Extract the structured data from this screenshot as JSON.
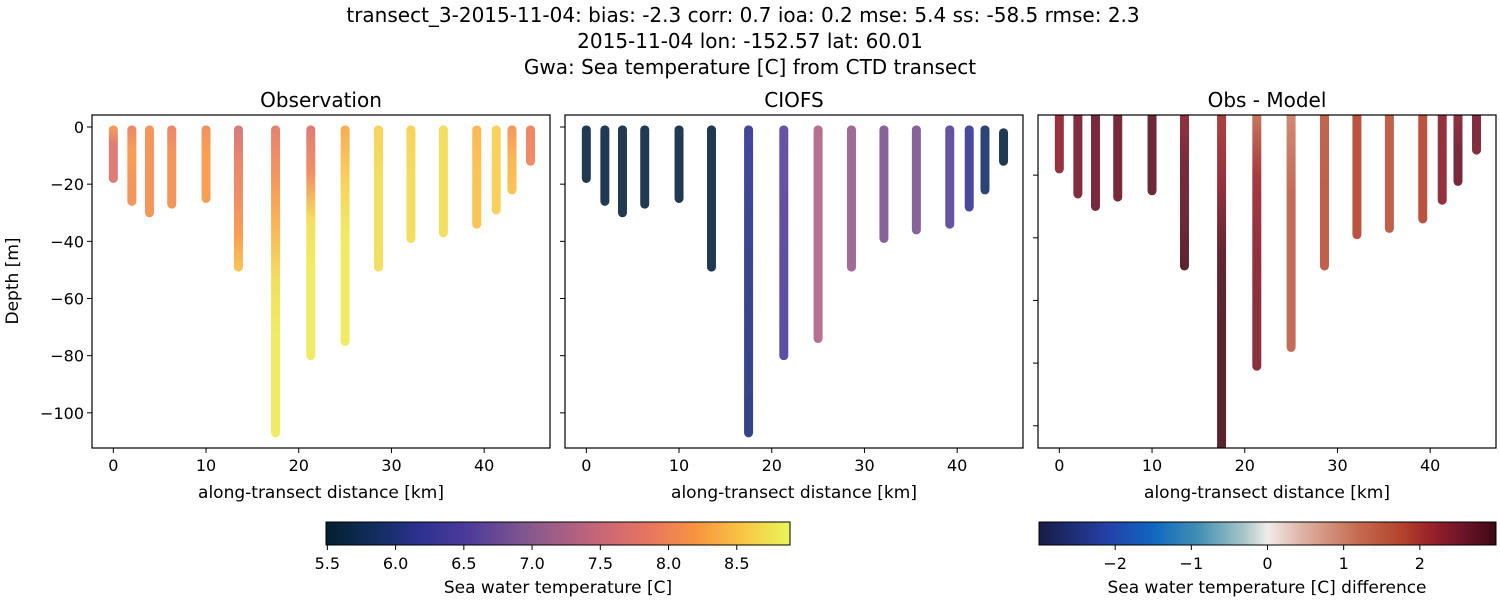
{
  "title": {
    "line1": "transect_3-2015-11-04: bias: -2.3  corr: 0.7  ioa: 0.2  mse: 5.4  ss: -58.5  rmse: 2.3",
    "line2": "2015-11-04 lon: -152.57 lat: 60.01",
    "line3": "Gwa: Sea temperature [C] from CTD transect"
  },
  "chart_data": [
    {
      "type": "scatter",
      "title": "Observation",
      "xlabel": "along-transect distance [km]",
      "ylabel": "Depth [m]",
      "xlim": [
        -2.3,
        47.1
      ],
      "ylim": [
        -112.3,
        4.2
      ],
      "xticks": [
        0,
        10,
        20,
        30,
        40
      ],
      "yticks": [
        0,
        -20,
        -40,
        -60,
        -80,
        -100
      ],
      "colormap": "thermal",
      "clim": [
        5.49,
        8.89
      ],
      "casts": [
        {
          "x": 0,
          "depth": 18,
          "temps": [
            8.2,
            7.7,
            7.7,
            7.7
          ]
        },
        {
          "x": 2,
          "depth": 26,
          "temps": [
            7.9,
            8.2,
            8.1,
            8.1
          ]
        },
        {
          "x": 3.9,
          "depth": 30,
          "temps": [
            8.1,
            8.1,
            8.1,
            8.1
          ]
        },
        {
          "x": 6.3,
          "depth": 27,
          "temps": [
            7.9,
            8.1,
            8.1,
            8.1
          ]
        },
        {
          "x": 10,
          "depth": 25,
          "temps": [
            8.0,
            8.2,
            8.2,
            8.2
          ]
        },
        {
          "x": 13.5,
          "depth": 49,
          "temps": [
            7.6,
            7.9,
            8.0,
            8.2,
            8.5
          ]
        },
        {
          "x": 17.5,
          "depth": 107,
          "temps": [
            7.8,
            8.1,
            8.4,
            8.7,
            8.8,
            8.8,
            8.8
          ]
        },
        {
          "x": 21.3,
          "depth": 80,
          "temps": [
            7.7,
            8.0,
            8.7,
            8.8,
            8.8,
            8.8
          ]
        },
        {
          "x": 25,
          "depth": 75,
          "temps": [
            8.3,
            8.6,
            8.8,
            8.8,
            8.8
          ]
        },
        {
          "x": 28.6,
          "depth": 49,
          "temps": [
            8.6,
            8.7,
            8.7,
            8.7
          ]
        },
        {
          "x": 32.1,
          "depth": 39,
          "temps": [
            8.6,
            8.7,
            8.7
          ]
        },
        {
          "x": 35.6,
          "depth": 37,
          "temps": [
            8.7,
            8.7,
            8.7
          ]
        },
        {
          "x": 39.2,
          "depth": 34,
          "temps": [
            8.4,
            8.5,
            8.5
          ]
        },
        {
          "x": 41.3,
          "depth": 29,
          "temps": [
            8.6,
            8.6,
            8.6
          ]
        },
        {
          "x": 43,
          "depth": 22,
          "temps": [
            8.1,
            8.4,
            8.5
          ]
        },
        {
          "x": 45,
          "depth": 12,
          "temps": [
            7.9,
            8.0
          ]
        }
      ]
    },
    {
      "type": "scatter",
      "title": "CIOFS",
      "xlabel": "along-transect distance [km]",
      "xlim": [
        -2.3,
        47.1
      ],
      "ylim": [
        -112.3,
        4.2
      ],
      "xticks": [
        0,
        10,
        20,
        30,
        40
      ],
      "yticks": [
        0,
        -20,
        -40,
        -60,
        -80,
        -100
      ],
      "colormap": "thermal",
      "clim": [
        5.49,
        8.89
      ],
      "casts": [
        {
          "x": 0,
          "depth": 18,
          "temps": [
            5.6
          ]
        },
        {
          "x": 2,
          "depth": 26,
          "temps": [
            5.6
          ]
        },
        {
          "x": 3.9,
          "depth": 30,
          "temps": [
            5.6
          ]
        },
        {
          "x": 6.3,
          "depth": 27,
          "temps": [
            5.6
          ]
        },
        {
          "x": 10,
          "depth": 25,
          "temps": [
            5.6
          ]
        },
        {
          "x": 13.5,
          "depth": 49,
          "temps": [
            5.6
          ]
        },
        {
          "x": 17.5,
          "depth": 107,
          "temps": [
            6.2,
            6.1,
            6.0
          ]
        },
        {
          "x": 21.3,
          "depth": 80,
          "temps": [
            6.6,
            6.5
          ]
        },
        {
          "x": 25,
          "depth": 74,
          "temps": [
            7.3,
            7.3
          ]
        },
        {
          "x": 28.6,
          "depth": 49,
          "temps": [
            7.1
          ]
        },
        {
          "x": 32.1,
          "depth": 39,
          "temps": [
            6.9
          ]
        },
        {
          "x": 35.6,
          "depth": 36,
          "temps": [
            6.9
          ]
        },
        {
          "x": 39.2,
          "depth": 34,
          "temps": [
            6.6
          ]
        },
        {
          "x": 41.3,
          "depth": 28,
          "temps": [
            6.3
          ]
        },
        {
          "x": 43,
          "depth": 22,
          "temps": [
            5.9
          ]
        },
        {
          "x": 45,
          "depth": 12,
          "temps": [
            5.6
          ],
          "top": 2
        }
      ]
    },
    {
      "type": "scatter",
      "title": "Obs - Model",
      "xlabel": "along-transect distance [km]",
      "xlim": [
        -2.3,
        47.1
      ],
      "ylim": [
        -107.1,
        -0.8
      ],
      "xticks": [
        0,
        10,
        20,
        30,
        40
      ],
      "yticks": [
        -20,
        -40,
        -60,
        -80,
        -100
      ],
      "colormap": "balance",
      "clim": [
        -3.0,
        3.0
      ],
      "casts": [
        {
          "x": 0,
          "depth": 18,
          "temps": [
            2.3,
            2.3
          ]
        },
        {
          "x": 2,
          "depth": 26,
          "temps": [
            2.5,
            2.5
          ]
        },
        {
          "x": 3.9,
          "depth": 30,
          "temps": [
            2.6,
            2.6
          ]
        },
        {
          "x": 6.3,
          "depth": 27,
          "temps": [
            2.6,
            2.6
          ]
        },
        {
          "x": 10,
          "depth": 25,
          "temps": [
            2.7,
            2.7
          ]
        },
        {
          "x": 13.5,
          "depth": 49,
          "temps": [
            2.3,
            2.6,
            2.7,
            2.9
          ]
        },
        {
          "x": 17.5,
          "depth": 112,
          "temps": [
            2.0,
            2.3,
            2.8,
            2.9,
            2.9,
            2.9
          ]
        },
        {
          "x": 21.3,
          "depth": 81,
          "temps": [
            1.2,
            2.1,
            2.3,
            2.4,
            2.4
          ]
        },
        {
          "x": 25,
          "depth": 75,
          "temps": [
            1.0,
            1.4,
            1.4,
            1.4
          ]
        },
        {
          "x": 28.6,
          "depth": 49,
          "temps": [
            1.5,
            1.6,
            1.6
          ]
        },
        {
          "x": 32.1,
          "depth": 39,
          "temps": [
            1.8,
            1.8
          ]
        },
        {
          "x": 35.6,
          "depth": 37,
          "temps": [
            1.6,
            1.6
          ]
        },
        {
          "x": 39.2,
          "depth": 34,
          "temps": [
            1.8,
            1.8
          ]
        },
        {
          "x": 41.3,
          "depth": 28,
          "temps": [
            2.3,
            2.3
          ]
        },
        {
          "x": 43,
          "depth": 22,
          "temps": [
            2.3,
            2.6,
            2.6
          ]
        },
        {
          "x": 45,
          "depth": 12,
          "temps": [
            2.5,
            2.5
          ]
        }
      ]
    }
  ],
  "colorbars": [
    {
      "label": "Sea water temperature [C]",
      "colormap": "thermal",
      "range": [
        5.49,
        8.89
      ],
      "ticks": [
        5.5,
        6.0,
        6.5,
        7.0,
        7.5,
        8.0,
        8.5
      ],
      "tick_labels": [
        "5.5",
        "6.0",
        "6.5",
        "7.0",
        "7.5",
        "8.0",
        "8.5"
      ]
    },
    {
      "label": "Sea water temperature [C] difference",
      "colormap": "balance",
      "range": [
        -3.0,
        3.0
      ],
      "ticks": [
        -2,
        -1,
        0,
        1,
        2
      ],
      "tick_labels": [
        "−2",
        "−1",
        "0",
        "1",
        "2"
      ]
    }
  ]
}
